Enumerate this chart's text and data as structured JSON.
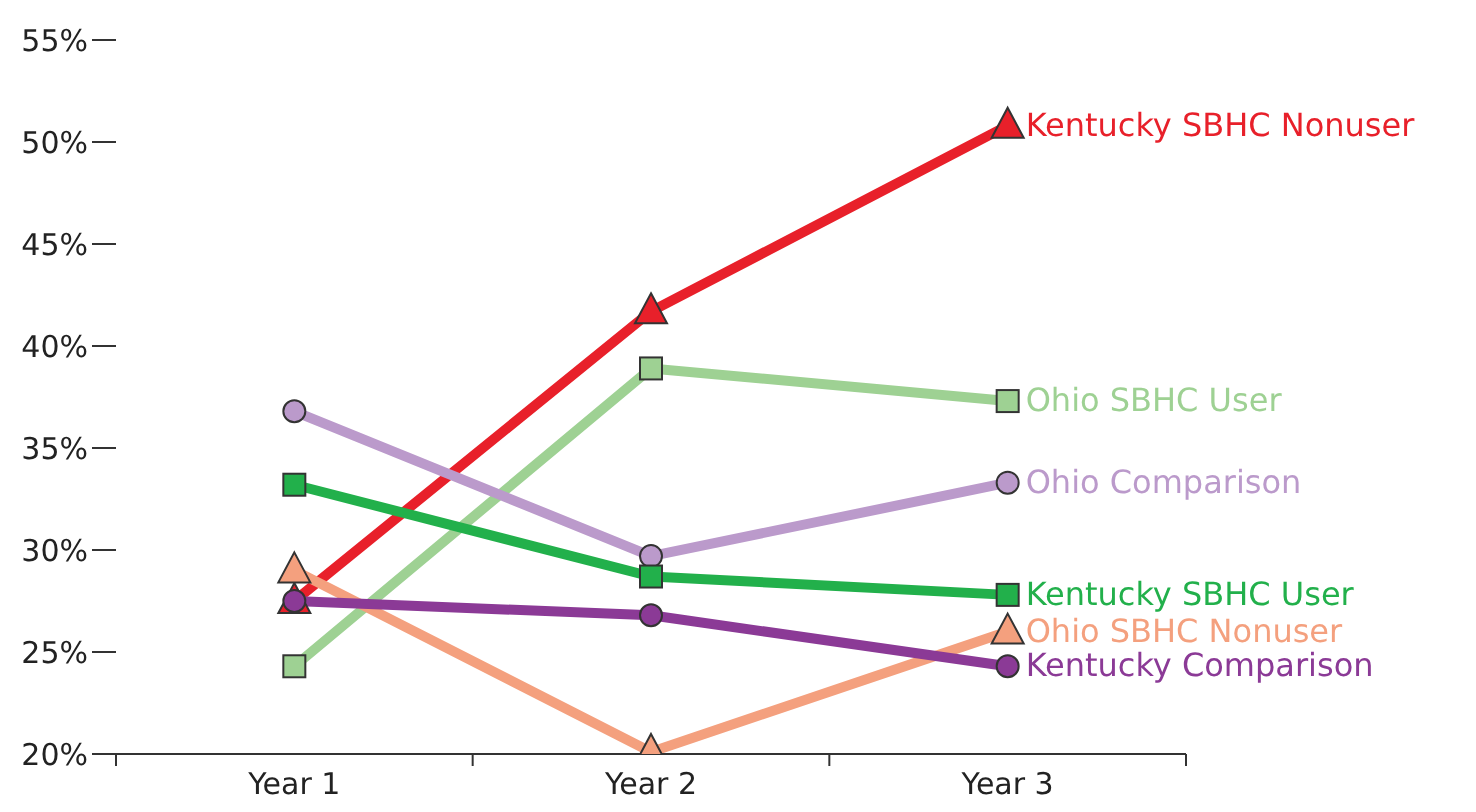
{
  "chart_data": {
    "type": "line",
    "categories": [
      "Year 1",
      "Year 2",
      "Year 3"
    ],
    "ylim": [
      20,
      55
    ],
    "yticks": [
      {
        "value": 20,
        "label": "20%"
      },
      {
        "value": 25,
        "label": "25%"
      },
      {
        "value": 30,
        "label": "30%"
      },
      {
        "value": 35,
        "label": "35%"
      },
      {
        "value": 40,
        "label": "40%"
      },
      {
        "value": 45,
        "label": "45%"
      },
      {
        "value": 50,
        "label": "50%"
      },
      {
        "value": 55,
        "label": "55%"
      }
    ],
    "grid": false,
    "legend": false,
    "series": [
      {
        "name": "Kentucky SBHC Nonuser",
        "color": "#e8202a",
        "marker": "triangle",
        "values": [
          27.5,
          41.7,
          50.8
        ]
      },
      {
        "name": "Ohio SBHC User",
        "color": "#9ed193",
        "marker": "square",
        "values": [
          24.3,
          38.9,
          37.3
        ]
      },
      {
        "name": "Ohio Comparison",
        "color": "#bb9acb",
        "marker": "circle",
        "values": [
          36.8,
          29.7,
          33.3
        ]
      },
      {
        "name": "Kentucky SBHC User",
        "color": "#22b04b",
        "marker": "square",
        "values": [
          33.2,
          28.7,
          27.8
        ]
      },
      {
        "name": "Ohio SBHC Nonuser",
        "color": "#f4a07e",
        "marker": "triangle",
        "values": [
          29.0,
          20.1,
          26.0
        ]
      },
      {
        "name": "Kentucky Comparison",
        "color": "#8b3a96",
        "marker": "circle",
        "values": [
          27.5,
          26.8,
          24.3
        ]
      }
    ]
  }
}
